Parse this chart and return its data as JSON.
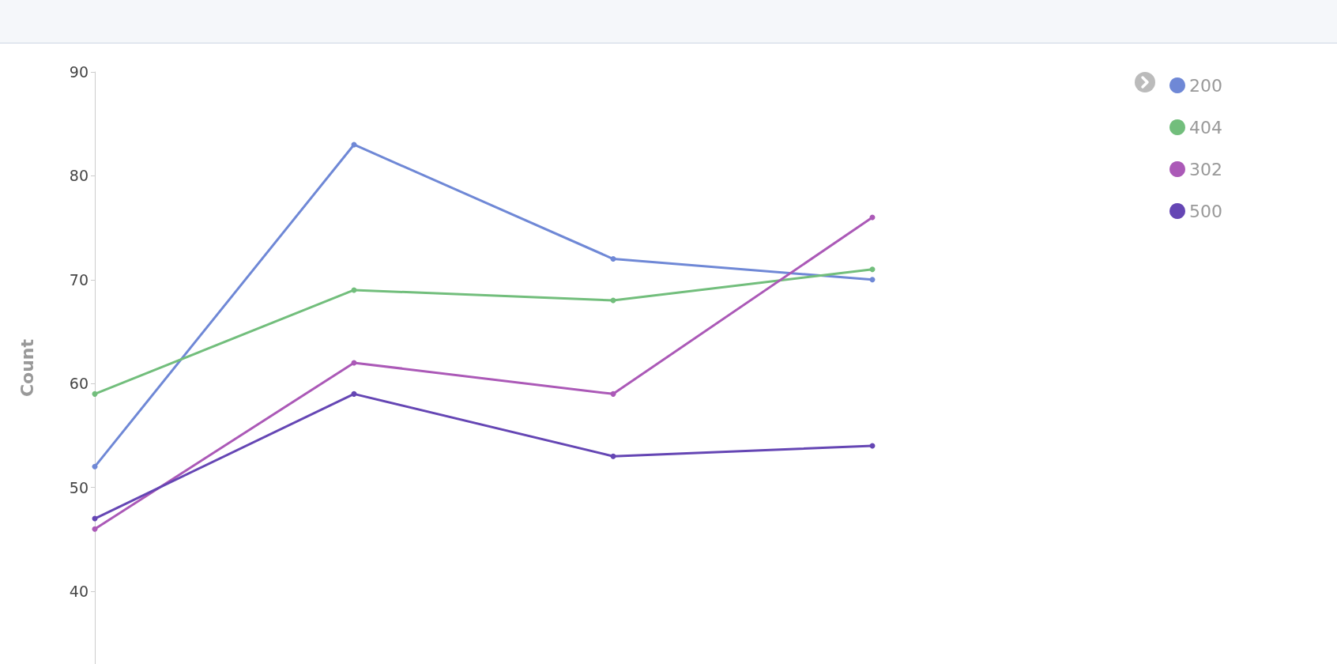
{
  "chart_data": {
    "type": "line",
    "ylabel": "Count",
    "categories": [
      null,
      null,
      null,
      null,
      null
    ],
    "series": [
      {
        "name": "200",
        "color": "#6f88d6",
        "values": [
          52,
          83,
          72,
          70,
          null
        ]
      },
      {
        "name": "404",
        "color": "#72be7c",
        "values": [
          59,
          69,
          68,
          71,
          null
        ]
      },
      {
        "name": "302",
        "color": "#ab59b7",
        "values": [
          46,
          62,
          59,
          76,
          null
        ]
      },
      {
        "name": "500",
        "color": "#6546b4",
        "values": [
          47,
          59,
          53,
          54,
          null
        ]
      }
    ],
    "ylim": [
      33,
      90
    ],
    "yticks": [
      40,
      50,
      60,
      70,
      80,
      90
    ],
    "grid": false,
    "legend": "top right",
    "marker": "circle",
    "line_style": "solid",
    "tick_labels": "y"
  }
}
